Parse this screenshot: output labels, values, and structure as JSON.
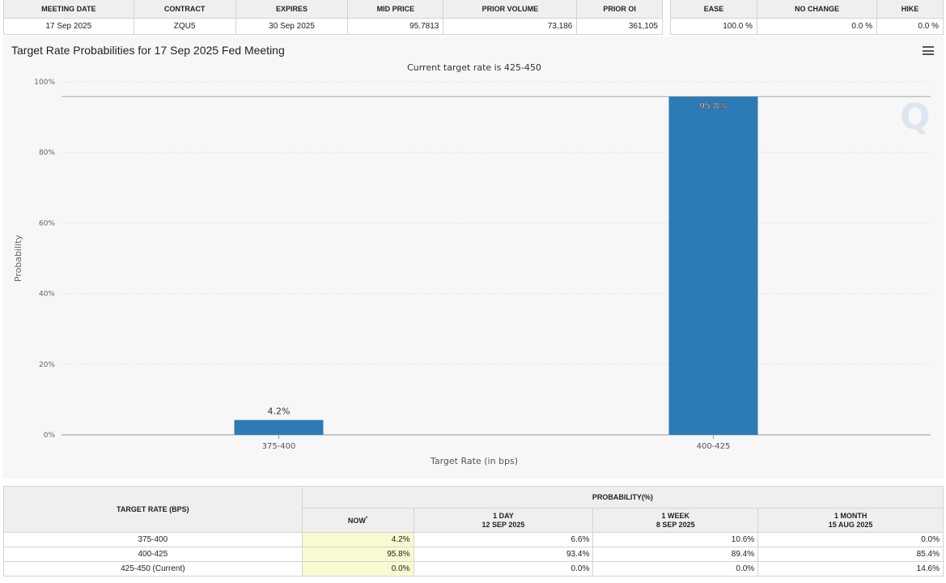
{
  "meeting_table": {
    "headers": [
      "MEETING DATE",
      "CONTRACT",
      "EXPIRES",
      "MID PRICE",
      "PRIOR VOLUME",
      "PRIOR OI"
    ],
    "row": [
      "17 Sep 2025",
      "ZQU5",
      "30 Sep 2025",
      "95.7813",
      "73,186",
      "361,105"
    ]
  },
  "summary_table": {
    "headers": [
      "EASE",
      "NO CHANGE",
      "HIKE"
    ],
    "row": [
      "100.0 %",
      "0.0 %",
      "0.0 %"
    ]
  },
  "chart": {
    "title": "Target Rate Probabilities for 17 Sep 2025 Fed Meeting",
    "subtitle": "Current target rate is 425-450",
    "watermark": "Q",
    "menu_icon": "hamburger-menu-icon"
  },
  "chart_data": {
    "type": "bar",
    "title": "Target Rate Probabilities for 17 Sep 2025 Fed Meeting",
    "subtitle": "Current target rate is 425-450",
    "categories": [
      "375-400",
      "400-425"
    ],
    "values": [
      4.2,
      95.8
    ],
    "data_labels": [
      "4.2%",
      "95.8%"
    ],
    "xlabel": "Target Rate (in bps)",
    "ylabel": "Probability",
    "ylim": [
      0,
      100
    ],
    "yticks": [
      "0%",
      "20%",
      "40%",
      "60%",
      "80%",
      "100%"
    ],
    "grid": true,
    "bar_color": "#2c7bb6"
  },
  "history_table": {
    "rate_header": "TARGET RATE (BPS)",
    "prob_header": "PROBABILITY(%)",
    "now_header": "NOW",
    "now_marker": "*",
    "columns": [
      {
        "label": "1 DAY",
        "date": "12 SEP 2025"
      },
      {
        "label": "1 WEEK",
        "date": "8 SEP 2025"
      },
      {
        "label": "1 MONTH",
        "date": "15 AUG 2025"
      }
    ],
    "rows": [
      {
        "rate": "375-400",
        "now": "4.2%",
        "values": [
          "6.6%",
          "10.6%",
          "0.0%"
        ]
      },
      {
        "rate": "400-425",
        "now": "95.8%",
        "values": [
          "93.4%",
          "89.4%",
          "85.4%"
        ]
      },
      {
        "rate": "425-450 (Current)",
        "now": "0.0%",
        "values": [
          "0.0%",
          "0.0%",
          "14.6%"
        ]
      }
    ]
  }
}
